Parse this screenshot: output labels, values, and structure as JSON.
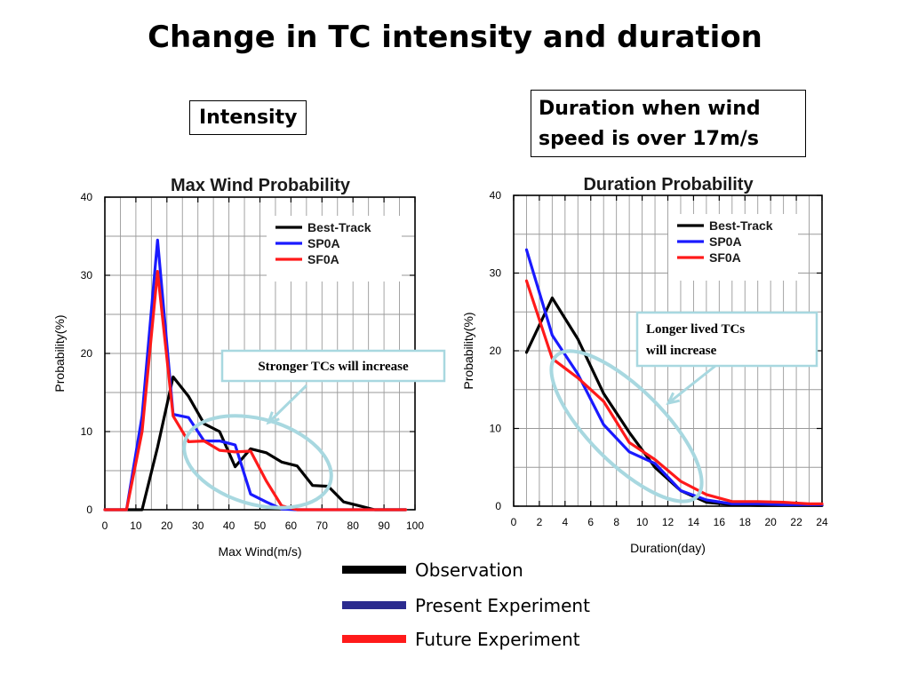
{
  "page": {
    "title": "Change in TC intensity and duration"
  },
  "labels": {
    "intensity": "Intensity",
    "duration": "Duration when wind speed is over 17m/s"
  },
  "colors": {
    "black": "#000000",
    "blue": "#1a1aff",
    "red": "#ff1a1a",
    "ellipse": "#a8d8e0",
    "grid": "#999999"
  },
  "legend": [
    {
      "label": "Observation",
      "color": "#000000"
    },
    {
      "label": "Present Experiment",
      "color": "#2b2b8f"
    },
    {
      "label": "Future Experiment",
      "color": "#ff1a1a"
    }
  ],
  "chart_data": [
    {
      "type": "line",
      "title": "Max Wind Probability",
      "xlabel": "Max Wind(m/s)",
      "ylabel": "Probability(%)",
      "xlim": [
        0,
        100
      ],
      "ylim": [
        0,
        40
      ],
      "xticks": [
        0,
        10,
        20,
        30,
        40,
        50,
        60,
        70,
        80,
        90,
        100
      ],
      "yticks": [
        0,
        10,
        20,
        30,
        40
      ],
      "grid": true,
      "legend_position": "top-right",
      "annotation": "Stronger TCs will increase",
      "series": [
        {
          "name": "Best-Track",
          "color": "#000000",
          "x": [
            0,
            12,
            17,
            22,
            27,
            32,
            37,
            42,
            47,
            52,
            57,
            62,
            67,
            72,
            77,
            82,
            87,
            92,
            97
          ],
          "y": [
            0,
            0,
            8,
            17,
            14.5,
            11,
            10,
            5.5,
            7.8,
            7.3,
            6.1,
            5.6,
            3.1,
            3.0,
            1.0,
            0.5,
            0,
            0,
            0
          ]
        },
        {
          "name": "SP0A",
          "color": "#1a1aff",
          "x": [
            0,
            7,
            12,
            17,
            22,
            27,
            32,
            37,
            42,
            47,
            52,
            57,
            62,
            67,
            72,
            77,
            82,
            87,
            92,
            97
          ],
          "y": [
            0,
            0,
            12,
            34.5,
            12.2,
            11.8,
            8.8,
            8.8,
            8.3,
            2.0,
            1.0,
            0.1,
            0,
            0,
            0,
            0,
            0,
            0,
            0,
            0
          ]
        },
        {
          "name": "SF0A",
          "color": "#ff1a1a",
          "x": [
            0,
            7,
            12,
            17,
            22,
            27,
            32,
            37,
            42,
            47,
            52,
            57,
            62,
            67,
            72,
            77,
            82,
            87,
            92,
            97
          ],
          "y": [
            0,
            0,
            10,
            30.5,
            12.0,
            8.7,
            8.8,
            7.6,
            7.4,
            7.5,
            3.7,
            0.5,
            0,
            0,
            0,
            0,
            0,
            0,
            0,
            0
          ]
        }
      ]
    },
    {
      "type": "line",
      "title": "Duration Probability",
      "xlabel": "Duration(day)",
      "ylabel": "Probability(%)",
      "xlim": [
        0,
        24
      ],
      "ylim": [
        0,
        40
      ],
      "xticks": [
        0,
        2,
        4,
        6,
        8,
        10,
        12,
        14,
        16,
        18,
        20,
        22,
        24
      ],
      "yticks": [
        0,
        10,
        20,
        30,
        40
      ],
      "grid": true,
      "legend_position": "top-right",
      "annotation": "Longer lived TCs will increase",
      "series": [
        {
          "name": "Best-Track",
          "color": "#000000",
          "x": [
            1,
            3,
            5,
            7,
            9,
            11,
            13,
            15,
            17,
            19,
            21,
            23,
            24
          ],
          "y": [
            19.8,
            26.8,
            21.5,
            14.5,
            9.5,
            5.0,
            2.0,
            0.5,
            0.2,
            0.1,
            0.1,
            0.1,
            0.1
          ]
        },
        {
          "name": "SP0A",
          "color": "#1a1aff",
          "x": [
            1,
            3,
            5,
            7,
            9,
            11,
            13,
            15,
            17,
            19,
            21,
            23,
            24
          ],
          "y": [
            33,
            22,
            17,
            10.5,
            7,
            5.5,
            2.0,
            0.8,
            0.3,
            0.3,
            0.2,
            0.2,
            0.2
          ]
        },
        {
          "name": "SF0A",
          "color": "#ff1a1a",
          "x": [
            1,
            3,
            5,
            7,
            9,
            11,
            13,
            15,
            17,
            19,
            21,
            23,
            24
          ],
          "y": [
            29,
            19,
            16.5,
            13.5,
            8.2,
            6.0,
            3.2,
            1.5,
            0.6,
            0.6,
            0.5,
            0.3,
            0.3
          ]
        }
      ]
    }
  ]
}
